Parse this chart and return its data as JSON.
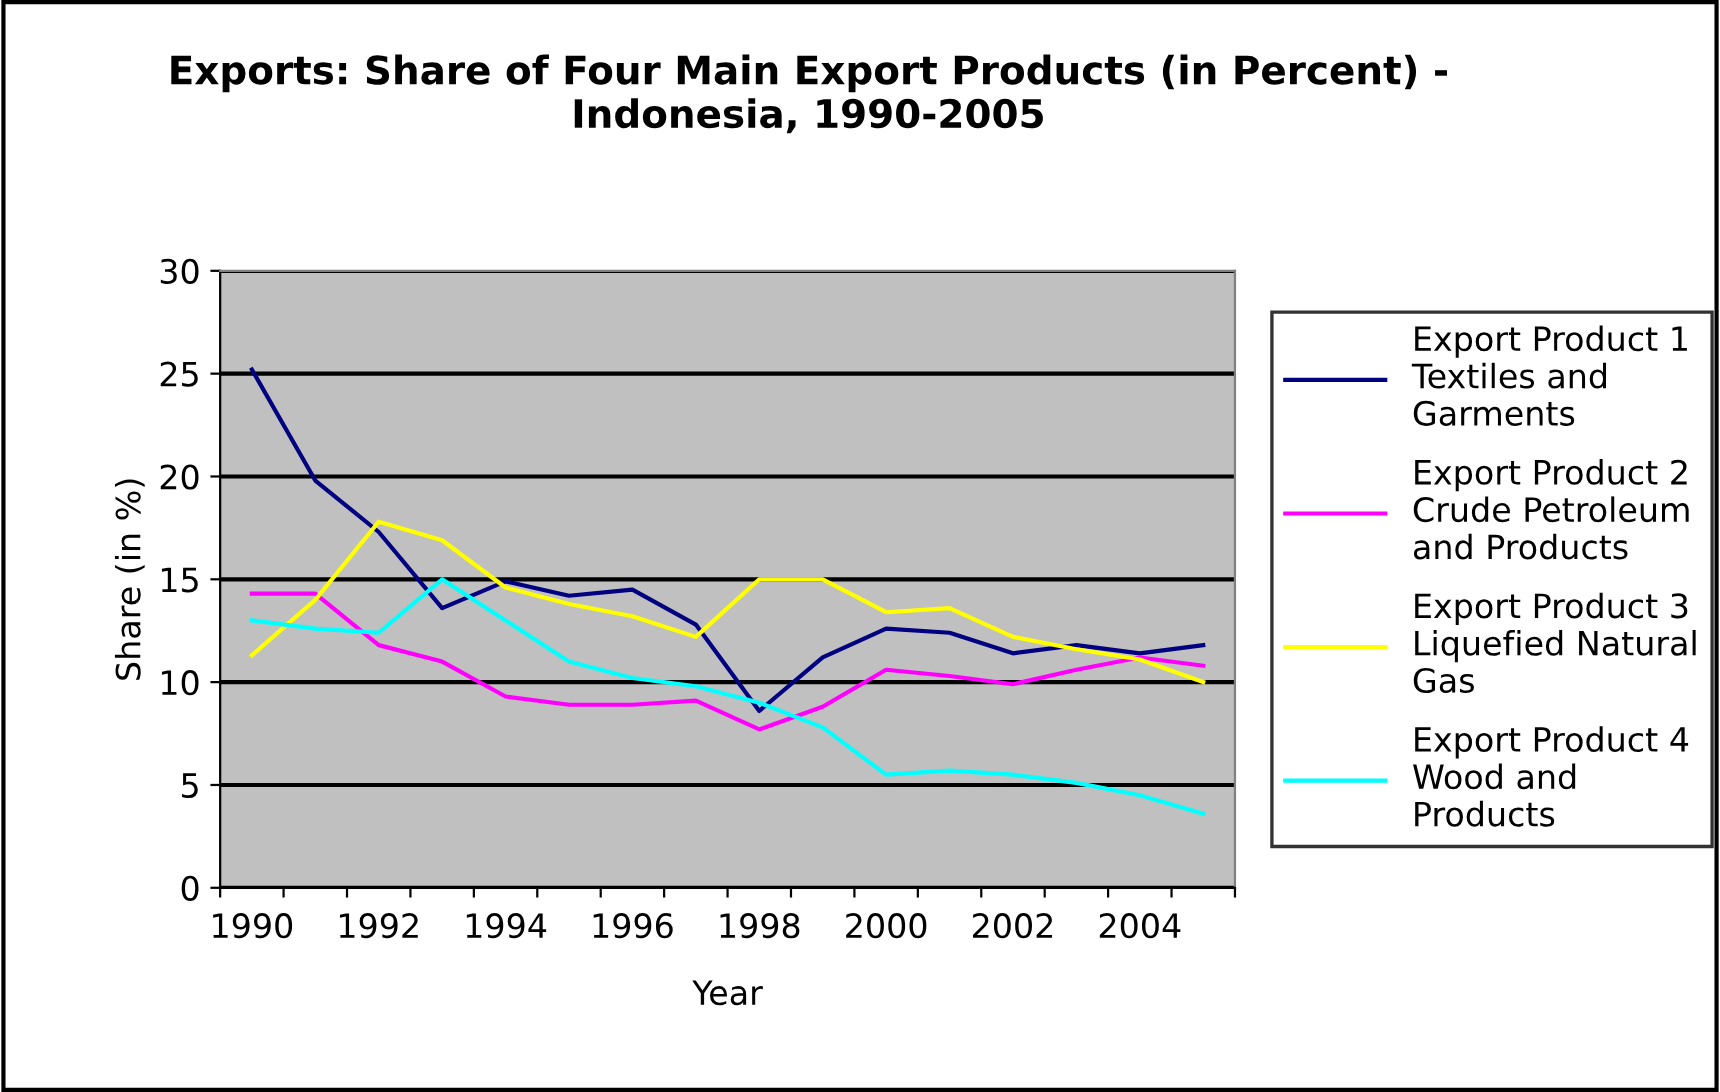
{
  "chart_data": {
    "type": "line",
    "title": "Exports: Share of Four Main Export Products (in Percent) -\nIndonesia, 1990-2005",
    "xlabel": "Year",
    "ylabel": "Share (in %)",
    "categories": [
      "1990",
      null,
      "1992",
      null,
      "1994",
      null,
      "1996",
      null,
      "1998",
      null,
      "2000",
      null,
      "2002",
      null,
      "2004",
      null
    ],
    "series": [
      {
        "name": "Export Product 1\nTextiles and\nGarments",
        "color": "#000080",
        "values": [
          25.2,
          19.8,
          17.3,
          13.6,
          14.9,
          14.2,
          14.5,
          12.8,
          8.6,
          11.2,
          12.6,
          12.4,
          11.4,
          11.8,
          11.4,
          11.8
        ]
      },
      {
        "name": "Export Product 2\nCrude Petroleum\nand Products",
        "color": "#ff00ff",
        "values": [
          14.3,
          14.3,
          11.8,
          11.0,
          9.3,
          8.9,
          8.9,
          9.1,
          7.7,
          8.8,
          10.6,
          10.3,
          9.9,
          10.6,
          11.2,
          10.8
        ]
      },
      {
        "name": "Export Product 3\nLiquefied Natural\nGas",
        "color": "#ffff00",
        "values": [
          11.3,
          14.0,
          17.8,
          16.9,
          14.6,
          13.8,
          13.2,
          12.2,
          15.0,
          15.0,
          13.4,
          13.6,
          12.2,
          11.6,
          11.1,
          10.0
        ]
      },
      {
        "name": "Export Product 4\nWood and\nProducts",
        "color": "#00ffff",
        "values": [
          13.0,
          12.6,
          12.4,
          15.0,
          13.0,
          11.0,
          10.2,
          9.8,
          9.0,
          7.8,
          5.5,
          5.7,
          5.5,
          5.1,
          4.5,
          3.6
        ]
      }
    ],
    "ylim": [
      0,
      30
    ],
    "yticks": [
      0,
      5,
      10,
      15,
      20,
      25,
      30
    ],
    "grid": "y",
    "legend": "right",
    "marker": "none",
    "line_style": "solid"
  }
}
